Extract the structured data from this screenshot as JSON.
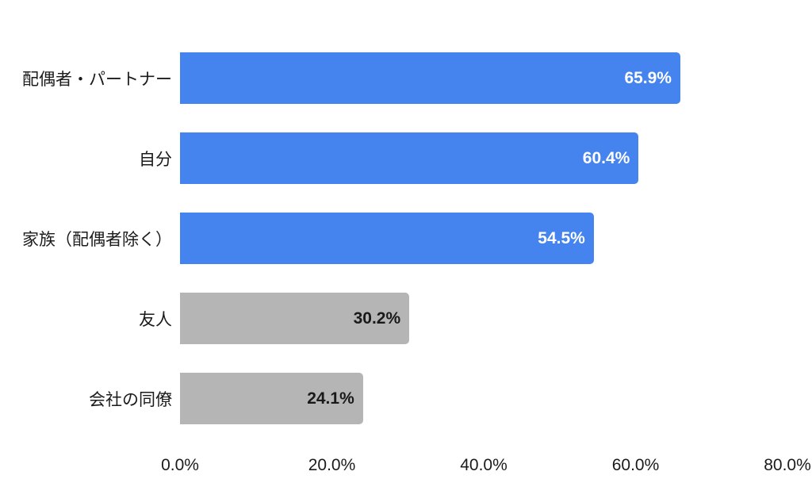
{
  "chart_data": {
    "type": "bar",
    "orientation": "horizontal",
    "title": "",
    "xlabel": "",
    "ylabel": "",
    "xlim": [
      0,
      80
    ],
    "grid": false,
    "legend": false,
    "categories": [
      "配偶者・パートナー",
      "自分",
      "家族（配偶者除く）",
      "友人",
      "会社の同僚"
    ],
    "values": [
      65.9,
      60.4,
      54.5,
      30.2,
      24.1
    ],
    "value_labels": [
      "65.9%",
      "60.4%",
      "54.5%",
      "30.2%",
      "24.1%"
    ],
    "bar_colors": [
      "#4584ee",
      "#4584ee",
      "#4584ee",
      "#b5b5b5",
      "#b5b5b5"
    ],
    "value_label_colors": [
      "#ffffff",
      "#ffffff",
      "#ffffff",
      "#1a1a1a",
      "#1a1a1a"
    ],
    "x_axis": {
      "ticks": [
        {
          "label": "0.0%",
          "value": 0
        },
        {
          "label": "20.0%",
          "value": 20
        },
        {
          "label": "40.0%",
          "value": 40
        },
        {
          "label": "60.0%",
          "value": 60
        },
        {
          "label": "80.0%",
          "value": 80
        }
      ]
    },
    "colors": {
      "highlight_bar": "#4584ee",
      "muted_bar": "#b5b5b5",
      "text": "#1b1b1b",
      "background": "#ffffff"
    }
  }
}
